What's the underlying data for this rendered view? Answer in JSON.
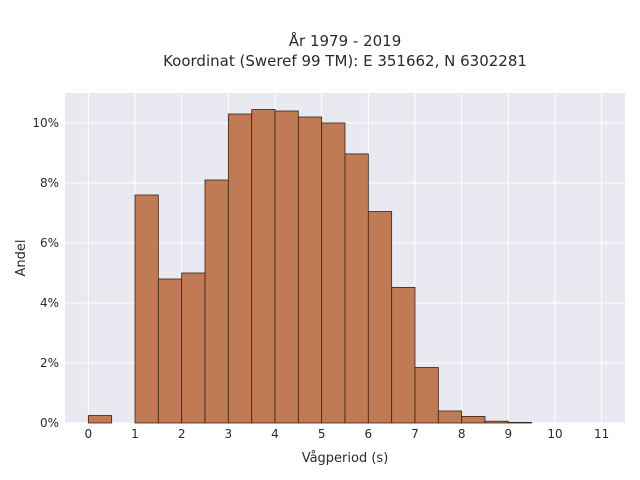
{
  "chart_data": {
    "type": "bar",
    "title_line1": "År 1979 - 2019",
    "title_line2": "Koordinat (Sweref 99 TM): E 351662, N 6302281",
    "xlabel": "Vågperiod (s)",
    "ylabel": "Andel",
    "bin_width": 0.5,
    "bin_starts": [
      0,
      1,
      1.5,
      2,
      2.5,
      3,
      3.5,
      4,
      4.5,
      5,
      5.5,
      6,
      6.5,
      7,
      7.5,
      8,
      8.5,
      9
    ],
    "values": [
      0.25,
      7.6,
      4.8,
      5.0,
      8.1,
      10.3,
      10.45,
      10.4,
      10.2,
      10.0,
      8.97,
      7.05,
      4.52,
      1.85,
      0.4,
      0.22,
      0.06,
      0.02
    ],
    "xlim": [
      -0.5,
      11.5
    ],
    "ylim": [
      0,
      11
    ],
    "x_ticks": [
      "0",
      "1",
      "2",
      "3",
      "4",
      "5",
      "6",
      "7",
      "8",
      "9",
      "10",
      "11"
    ],
    "y_ticks": [
      "0%",
      "2%",
      "4%",
      "6%",
      "8%",
      "10%"
    ],
    "y_tick_values": [
      0,
      2,
      4,
      6,
      8,
      10
    ],
    "grid": true,
    "bar_color": "#c07a54",
    "bar_edge_color": "#3a2418",
    "plot_background": "#e9e9f2",
    "grid_color": "#ffffff"
  }
}
